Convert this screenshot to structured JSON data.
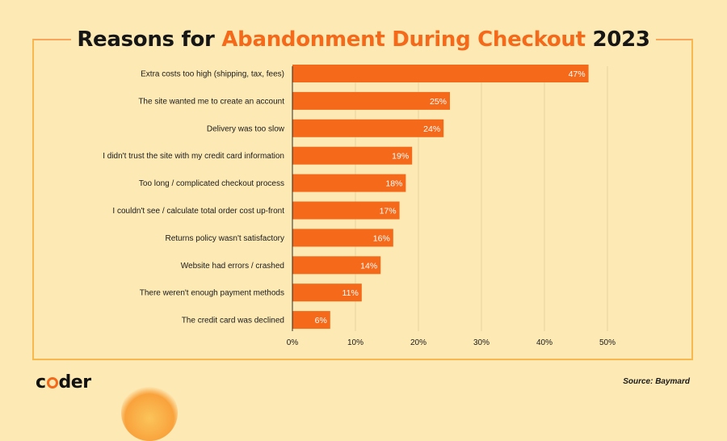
{
  "header": {
    "title_part1": "Reasons for ",
    "title_accent": "Abandonment During Checkout",
    "title_part2": " 2023"
  },
  "footer": {
    "logo_c": "c",
    "logo_rest": "der",
    "source": "Source: Baymard"
  },
  "colors": {
    "background": "#fde9b4",
    "bar": "#f4691a",
    "frame": "#f8b84e"
  },
  "chart_data": {
    "type": "bar",
    "orientation": "horizontal",
    "categories": [
      "Extra costs too high (shipping, tax, fees)",
      "The site wanted me to create an account",
      "Delivery was too slow",
      "I didn't trust the site with my credit card information",
      "Too long / complicated checkout process",
      "I couldn't see / calculate total order cost up-front",
      "Returns policy wasn't satisfactory",
      "Website had errors / crashed",
      "There weren't enough payment methods",
      "The credit card was declined"
    ],
    "values": [
      47,
      25,
      24,
      19,
      18,
      17,
      16,
      14,
      11,
      6
    ],
    "value_labels": [
      "47%",
      "25%",
      "24%",
      "19%",
      "18%",
      "17%",
      "16%",
      "14%",
      "11%",
      "6%"
    ],
    "xticks": [
      0,
      10,
      20,
      30,
      40,
      50
    ],
    "xtick_labels": [
      "0%",
      "10%",
      "20%",
      "30%",
      "40%",
      "50%"
    ],
    "xlim": [
      0,
      50
    ],
    "grid": true,
    "legend": false
  }
}
